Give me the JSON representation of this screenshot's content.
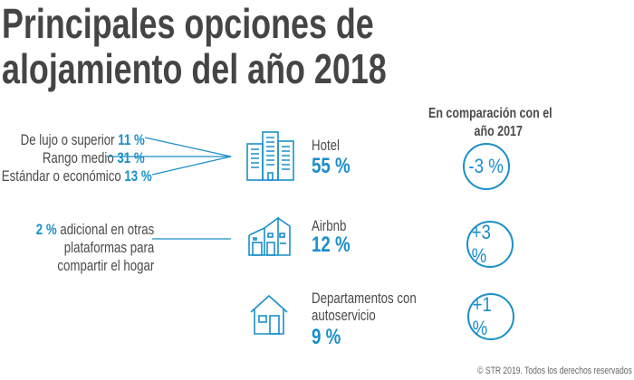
{
  "title": {
    "line1": "Principales opciones de",
    "line2": "alojamiento del año 2018"
  },
  "comparison_header": {
    "line1": "En comparación con el",
    "line2": "año 2017"
  },
  "hotel": {
    "label": "Hotel",
    "value": "55 %",
    "change": "-3 %",
    "icon": "hotel-building-icon",
    "breakdown": [
      {
        "label": "De lujo o superior",
        "value": "11 %"
      },
      {
        "label": "Rango medio",
        "value": "31 %"
      },
      {
        "label": "Estándar o económico",
        "value": "13 %"
      }
    ]
  },
  "airbnb": {
    "label": "Airbnb",
    "value": "12 %",
    "change": "+3 %",
    "icon": "house-modern-icon",
    "note": {
      "value": "2 %",
      "line1": "adicional en otras",
      "line2": "plataformas para",
      "line3": "compartir el hogar"
    }
  },
  "apartments": {
    "label_line1": "Departamentos con",
    "label_line2": "autoservicio",
    "value": "9 %",
    "change": "+1 %",
    "icon": "house-icon"
  },
  "footer": "© STR 2019. Todos los derechos reservados",
  "colors": {
    "accent": "#1a8fc9",
    "text": "#4a4a4a"
  }
}
